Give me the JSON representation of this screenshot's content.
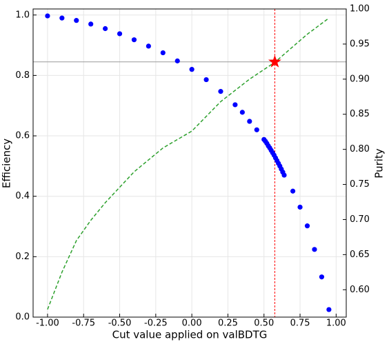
{
  "chart_data": {
    "type": "scatter",
    "xlabel": "Cut value applied on valBDTG",
    "ylabel": "Efficiency",
    "y2label": "Purity",
    "xlim": [
      -1.1,
      1.07
    ],
    "ylim": [
      0,
      1.02
    ],
    "y2lim": [
      0.561,
      1.0
    ],
    "xticks": [
      {
        "value": -1,
        "label": "-1.00"
      },
      {
        "value": -0.75,
        "label": "-0.75"
      },
      {
        "value": -0.5,
        "label": "-0.50"
      },
      {
        "value": -0.25,
        "label": "-0.25"
      },
      {
        "value": 0,
        "label": "0.00"
      },
      {
        "value": 0.25,
        "label": "0.25"
      },
      {
        "value": 0.5,
        "label": "0.50"
      },
      {
        "value": 0.75,
        "label": "0.75"
      },
      {
        "value": 1,
        "label": "1.00"
      }
    ],
    "yticks": [
      {
        "value": 0,
        "label": "0.0"
      },
      0.2,
      0.4,
      0.6,
      0.8,
      {
        "value": 1,
        "label": "1.0"
      }
    ],
    "y2ticks": [
      {
        "value": 0.6,
        "label": "0.60"
      },
      0.65,
      {
        "value": 0.7,
        "label": "0.70"
      },
      0.75,
      {
        "value": 0.8,
        "label": "0.80"
      },
      0.85,
      {
        "value": 0.9,
        "label": "0.90"
      },
      0.95,
      {
        "value": 1,
        "label": "1.00"
      }
    ],
    "grid": true,
    "series": [
      {
        "style": "dots",
        "color": "#0000ff",
        "x": [
          -1.0,
          -0.9,
          -0.8,
          -0.7,
          -0.6,
          -0.5,
          -0.4,
          -0.3,
          -0.2,
          -0.1,
          0.0,
          0.1,
          0.2,
          0.3,
          0.35,
          0.4,
          0.45,
          0.5,
          0.51,
          0.52,
          0.53,
          0.54,
          0.55,
          0.56,
          0.57,
          0.58,
          0.59,
          0.6,
          0.61,
          0.62,
          0.63,
          0.64,
          0.7,
          0.75,
          0.8,
          0.85,
          0.9,
          0.95
        ],
        "values": [
          0.997,
          0.99,
          0.982,
          0.97,
          0.955,
          0.938,
          0.918,
          0.897,
          0.875,
          0.848,
          0.82,
          0.786,
          0.747,
          0.703,
          0.678,
          0.648,
          0.62,
          0.588,
          0.582,
          0.575,
          0.567,
          0.56,
          0.552,
          0.544,
          0.536,
          0.527,
          0.518,
          0.509,
          0.5,
          0.49,
          0.48,
          0.47,
          0.417,
          0.364,
          0.302,
          0.224,
          0.133,
          0.025
        ]
      },
      {
        "style": "dashed",
        "color": "#2ca02c",
        "axis": "y2",
        "x": [
          -1.0,
          -0.9,
          -0.8,
          -0.7,
          -0.6,
          -0.4,
          -0.2,
          0.0,
          0.2,
          0.4,
          0.575,
          0.8,
          0.95
        ],
        "values": [
          0.572,
          0.625,
          0.67,
          0.699,
          0.724,
          0.768,
          0.802,
          0.826,
          0.868,
          0.9,
          0.924,
          0.964,
          0.987
        ]
      }
    ],
    "marker": {
      "x": 0.575,
      "y": 0.845,
      "color": "#ff0000"
    },
    "hline_color": "#999999",
    "vline_color": "#ff0000"
  }
}
